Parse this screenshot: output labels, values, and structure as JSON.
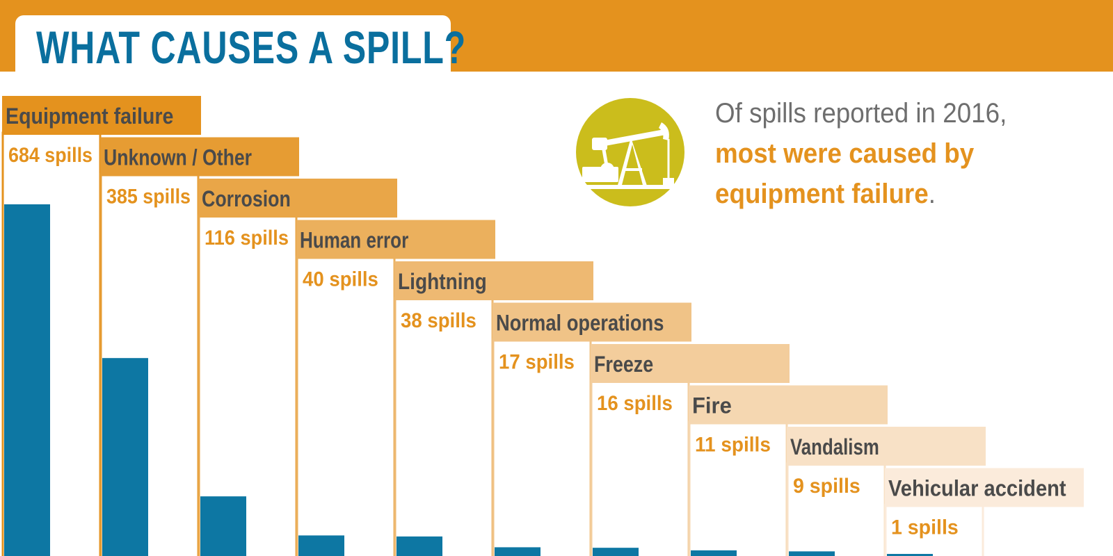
{
  "header": {
    "title": "WHAT CAUSES A SPILL?"
  },
  "headline": {
    "lead": "Of spills reported in 2016,",
    "emphasis_line1": "most were caused by",
    "emphasis_line2": "equipment failure",
    "stop": "."
  },
  "icon": {
    "name": "oil-pumpjack-icon",
    "circle_color": "#cbbd1c"
  },
  "colors": {
    "bar": "#0d77a3",
    "accent": "#e4921e",
    "label_text": "#4a4a4a",
    "value_text": "#e4921e",
    "title": "#0a6f9e"
  },
  "chart_data": {
    "type": "bar",
    "categories": [
      "Equipment failure",
      "Unknown / Other",
      "Corrosion",
      "Human error",
      "Lightning",
      "Normal operations",
      "Freeze",
      "Fire",
      "Vandalism",
      "Vehicular accident"
    ],
    "values": [
      684,
      385,
      116,
      40,
      38,
      17,
      16,
      11,
      9,
      1
    ],
    "value_labels": [
      "684 spills",
      "385 spills",
      "116 spills",
      "40 spills",
      "38 spills",
      "17 spills",
      "16 spills",
      "11 spills",
      "9 spills",
      "1 spills"
    ],
    "title": "WHAT CAUSES A SPILL?",
    "xlabel": "",
    "ylabel": "",
    "grid": false
  }
}
